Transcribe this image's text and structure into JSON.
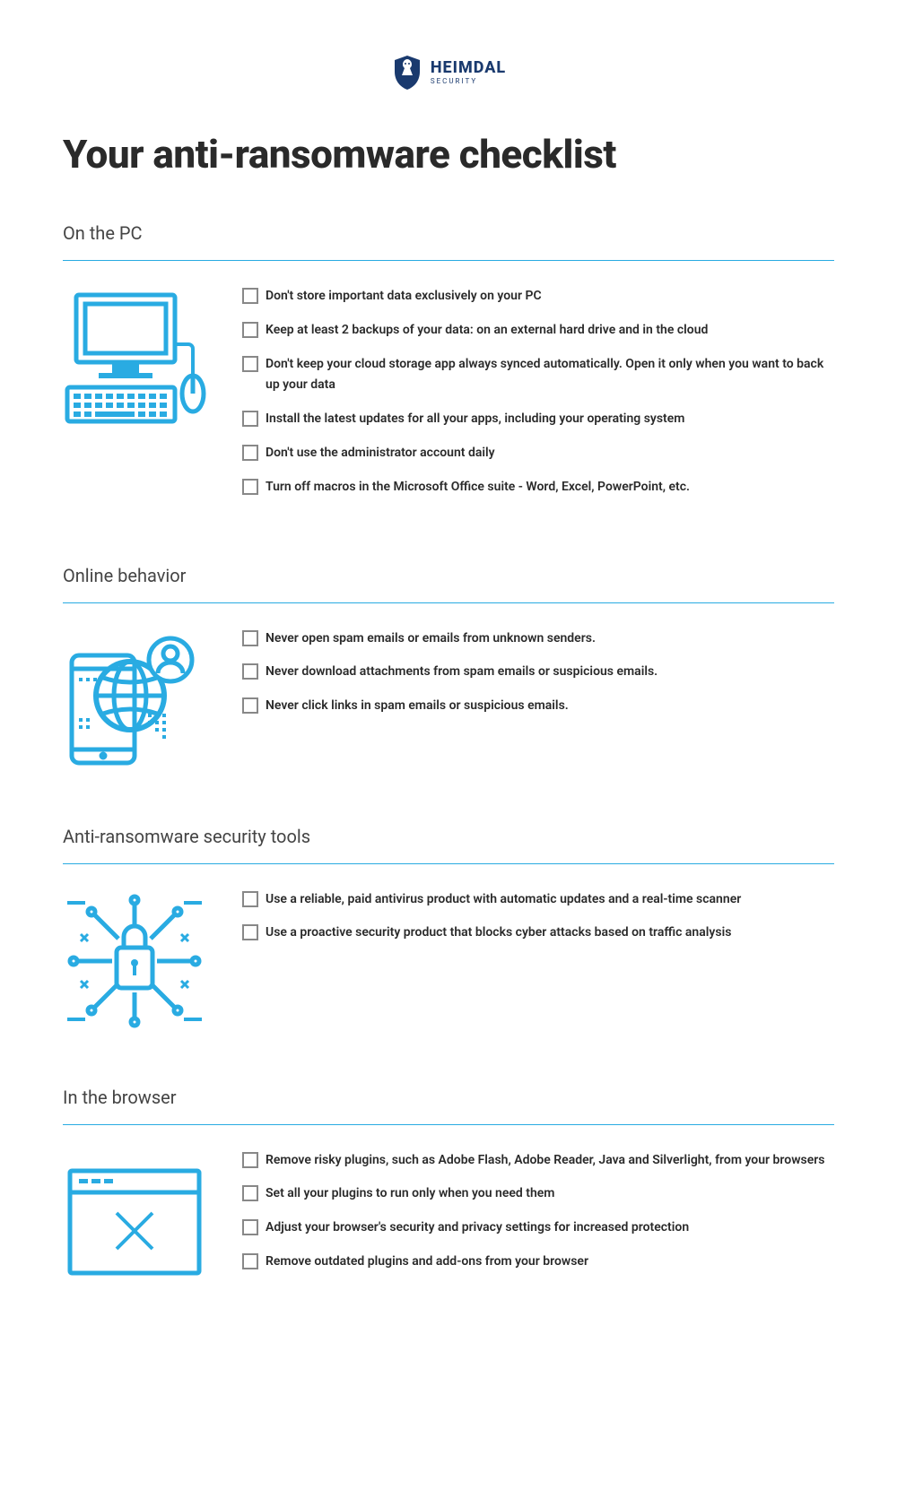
{
  "brand": {
    "name": "HEIMDAL",
    "sub": "SECURITY",
    "shield_color": "#1a3a6e"
  },
  "title": "Your anti-ransomware checklist",
  "accent_color": "#29abe2",
  "checkbox_border": "#888888",
  "text_color": "#2a2a2a",
  "sections": [
    {
      "title": "On the PC",
      "icon": "computer",
      "items": [
        "Don't store important data exclusively on your PC",
        "Keep at least 2 backups of your data: on an external hard drive and in the cloud",
        "Don't keep your cloud storage app always synced automatically. Open it only when you want to back up your data",
        "Install the latest updates for all your apps, including your operating system",
        "Don't use the administrator account daily",
        "Turn off macros in the Microsoft Office suite - Word, Excel, PowerPoint, etc."
      ]
    },
    {
      "title": "Online behavior",
      "icon": "globe-phone",
      "items": [
        "Never open spam emails or emails from unknown senders.",
        "Never download attachments from spam emails or suspicious emails.",
        "Never click links in spam emails or suspicious emails."
      ]
    },
    {
      "title": "Anti-ransomware security tools",
      "icon": "lock-circuit",
      "items": [
        "Use a reliable, paid antivirus product with automatic updates and a real-time scanner",
        "Use a proactive security product that blocks cyber attacks based on traffic analysis"
      ]
    },
    {
      "title": "In the browser",
      "icon": "browser-x",
      "items": [
        "Remove risky plugins, such as Adobe Flash, Adobe Reader, Java and Silverlight, from your browsers",
        "Set all your plugins to run only when you need them",
        "Adjust your browser's security and privacy settings for increased protection",
        "Remove outdated plugins and add-ons from your browser"
      ]
    }
  ]
}
